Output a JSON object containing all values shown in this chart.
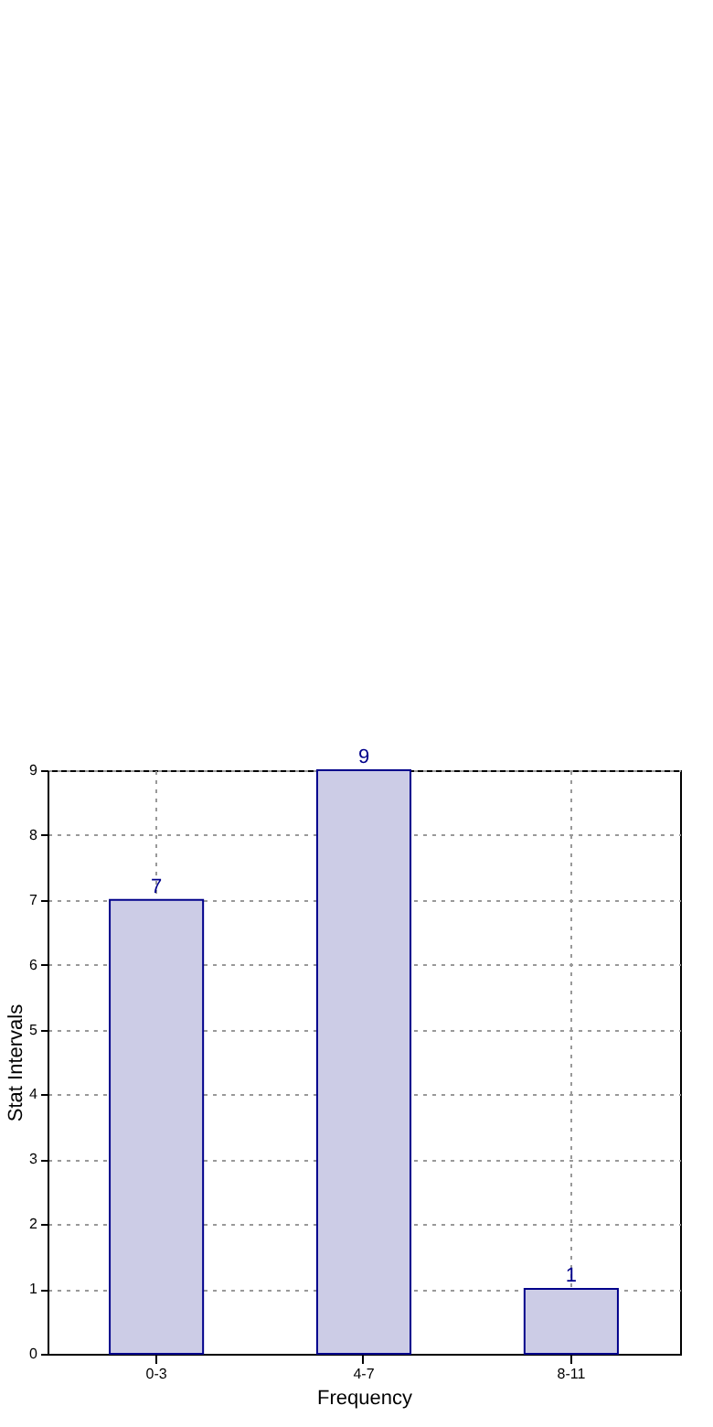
{
  "chart_data": {
    "type": "bar",
    "xlabel": "Frequency",
    "ylabel": "Stat Intervals",
    "categories": [
      "0-3",
      "4-7",
      "8-11"
    ],
    "values": [
      7,
      9,
      1
    ],
    "color": "#cccce6",
    "ylim": [
      0,
      9
    ],
    "yticks": [
      0,
      1,
      2,
      3,
      4,
      5,
      6,
      7,
      8,
      9
    ],
    "grid": true,
    "data_labels": true
  }
}
